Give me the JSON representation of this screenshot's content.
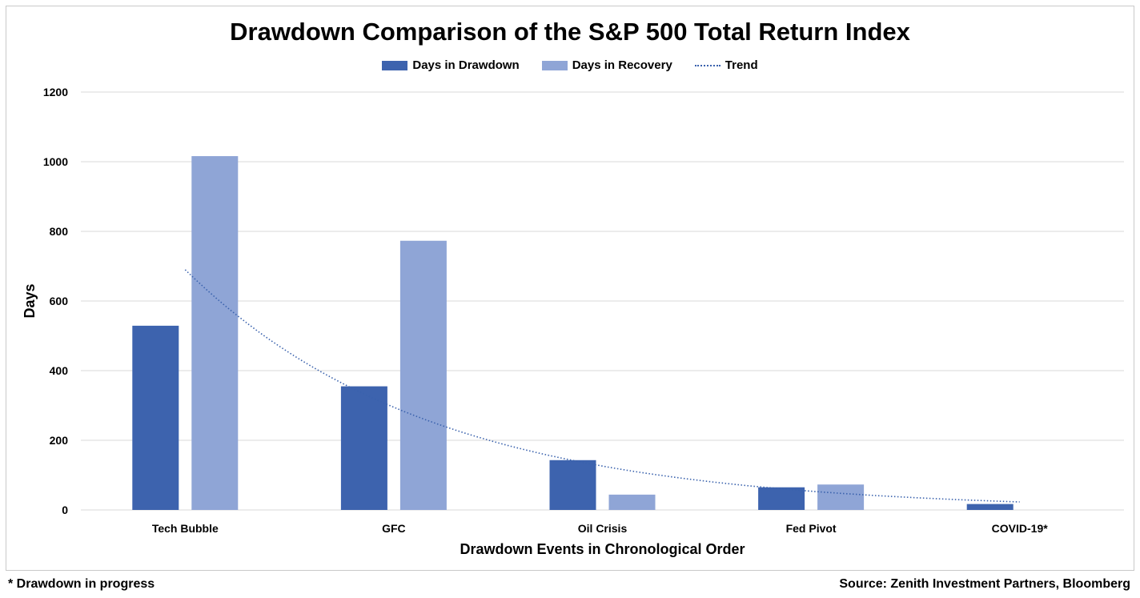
{
  "title": "Drawdown Comparison of the S&P 500 Total Return Index",
  "legend": {
    "series1": "Days in Drawdown",
    "series2": "Days in Recovery",
    "trend": "Trend"
  },
  "footer": {
    "note": "* Drawdown in progress",
    "source": "Source: Zenith Investment Partners, Bloomberg"
  },
  "colors": {
    "drawdown": "#3d63ae",
    "recovery": "#8fa5d6",
    "trend": "#3a62ad",
    "grid": "#d9d9d9"
  },
  "chart_data": {
    "type": "bar",
    "categories": [
      "Tech Bubble",
      "GFC",
      "Oil Crisis",
      "Fed Pivot",
      "COVID-19*"
    ],
    "series": [
      {
        "name": "Days in Drawdown",
        "values": [
          529,
          355,
          143,
          65,
          17
        ]
      },
      {
        "name": "Days in Recovery",
        "values": [
          1016,
          773,
          44,
          73,
          0
        ]
      }
    ],
    "trend": {
      "name": "Trend",
      "type": "exponential",
      "start": 690,
      "end": 23
    },
    "xlabel": "Drawdown Events in Chronological Order",
    "ylabel": "Days",
    "ylim": [
      0,
      1200
    ],
    "yticks": [
      0,
      200,
      400,
      600,
      800,
      1000,
      1200
    ],
    "grid": true,
    "legend_position": "top"
  }
}
